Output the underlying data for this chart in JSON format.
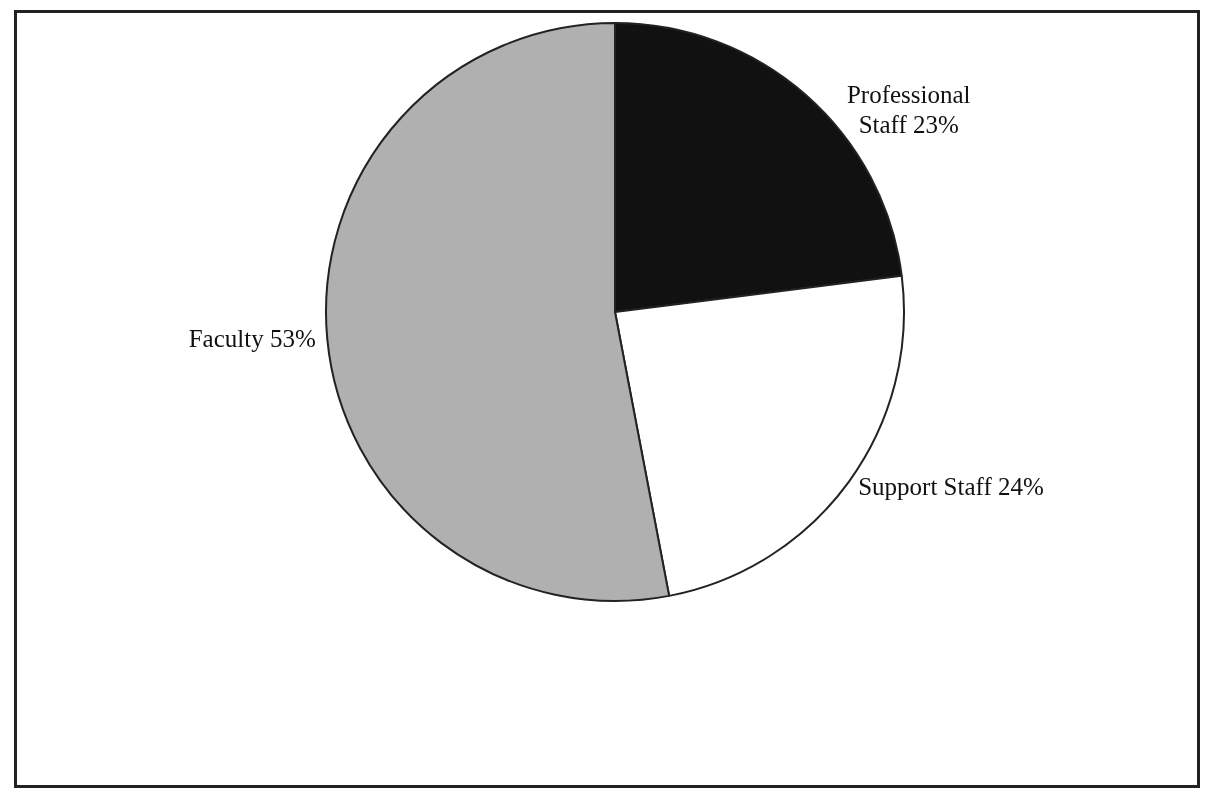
{
  "chart_data": {
    "type": "pie",
    "categories": [
      "Professional Staff",
      "Support Staff",
      "Faculty"
    ],
    "values": [
      23,
      24,
      53
    ],
    "colors": [
      "#111111",
      "#ffffff",
      "#b0b0b0"
    ],
    "value_labels": [
      "23%",
      "24%",
      "53%"
    ],
    "legend": false
  }
}
